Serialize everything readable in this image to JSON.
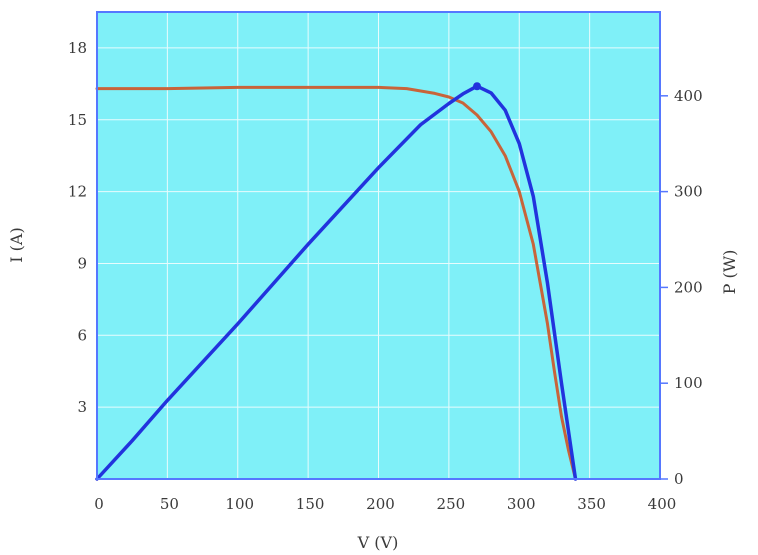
{
  "chart_data": {
    "type": "line",
    "xlabel": "V (V)",
    "ylabel": "I (A)",
    "y2label": "P (W)",
    "xlim": [
      0,
      400
    ],
    "ylim": [
      0,
      19.5
    ],
    "y2lim": [
      0,
      487.5
    ],
    "xticks": [
      "0",
      "50",
      "100",
      "150",
      "200",
      "250",
      "300",
      "350",
      "400"
    ],
    "yticks": [
      "3",
      "6",
      "9",
      "12",
      "15",
      "18"
    ],
    "y2ticks": [
      "0",
      "100",
      "200",
      "300",
      "400"
    ],
    "grid": true,
    "colors": {
      "plot_bg": "#7ff0f8",
      "grid": "#e8fcfd",
      "frame": "#5577ff",
      "current_curve": "#c8643a",
      "power_curve": "#2233dd"
    },
    "series": [
      {
        "axis": "left",
        "x": [
          0,
          50,
          100,
          150,
          200,
          220,
          240,
          250,
          260,
          270,
          280,
          290,
          300,
          310,
          320,
          325,
          330,
          335,
          340
        ],
        "values": [
          16.3,
          16.3,
          16.35,
          16.35,
          16.35,
          16.3,
          16.1,
          15.95,
          15.7,
          15.2,
          14.5,
          13.5,
          12.0,
          9.8,
          6.5,
          4.5,
          2.6,
          1.2,
          0
        ]
      },
      {
        "axis": "right",
        "x": [
          0,
          25,
          50,
          100,
          150,
          200,
          230,
          250,
          260,
          270,
          280,
          290,
          300,
          310,
          320,
          330,
          340
        ],
        "values": [
          0,
          40,
          82,
          162,
          245,
          325,
          370,
          392,
          402,
          410,
          403,
          385,
          350,
          295,
          205,
          100,
          0
        ]
      }
    ],
    "markers": [
      {
        "axis": "right",
        "x": 270,
        "y": 410
      }
    ]
  }
}
